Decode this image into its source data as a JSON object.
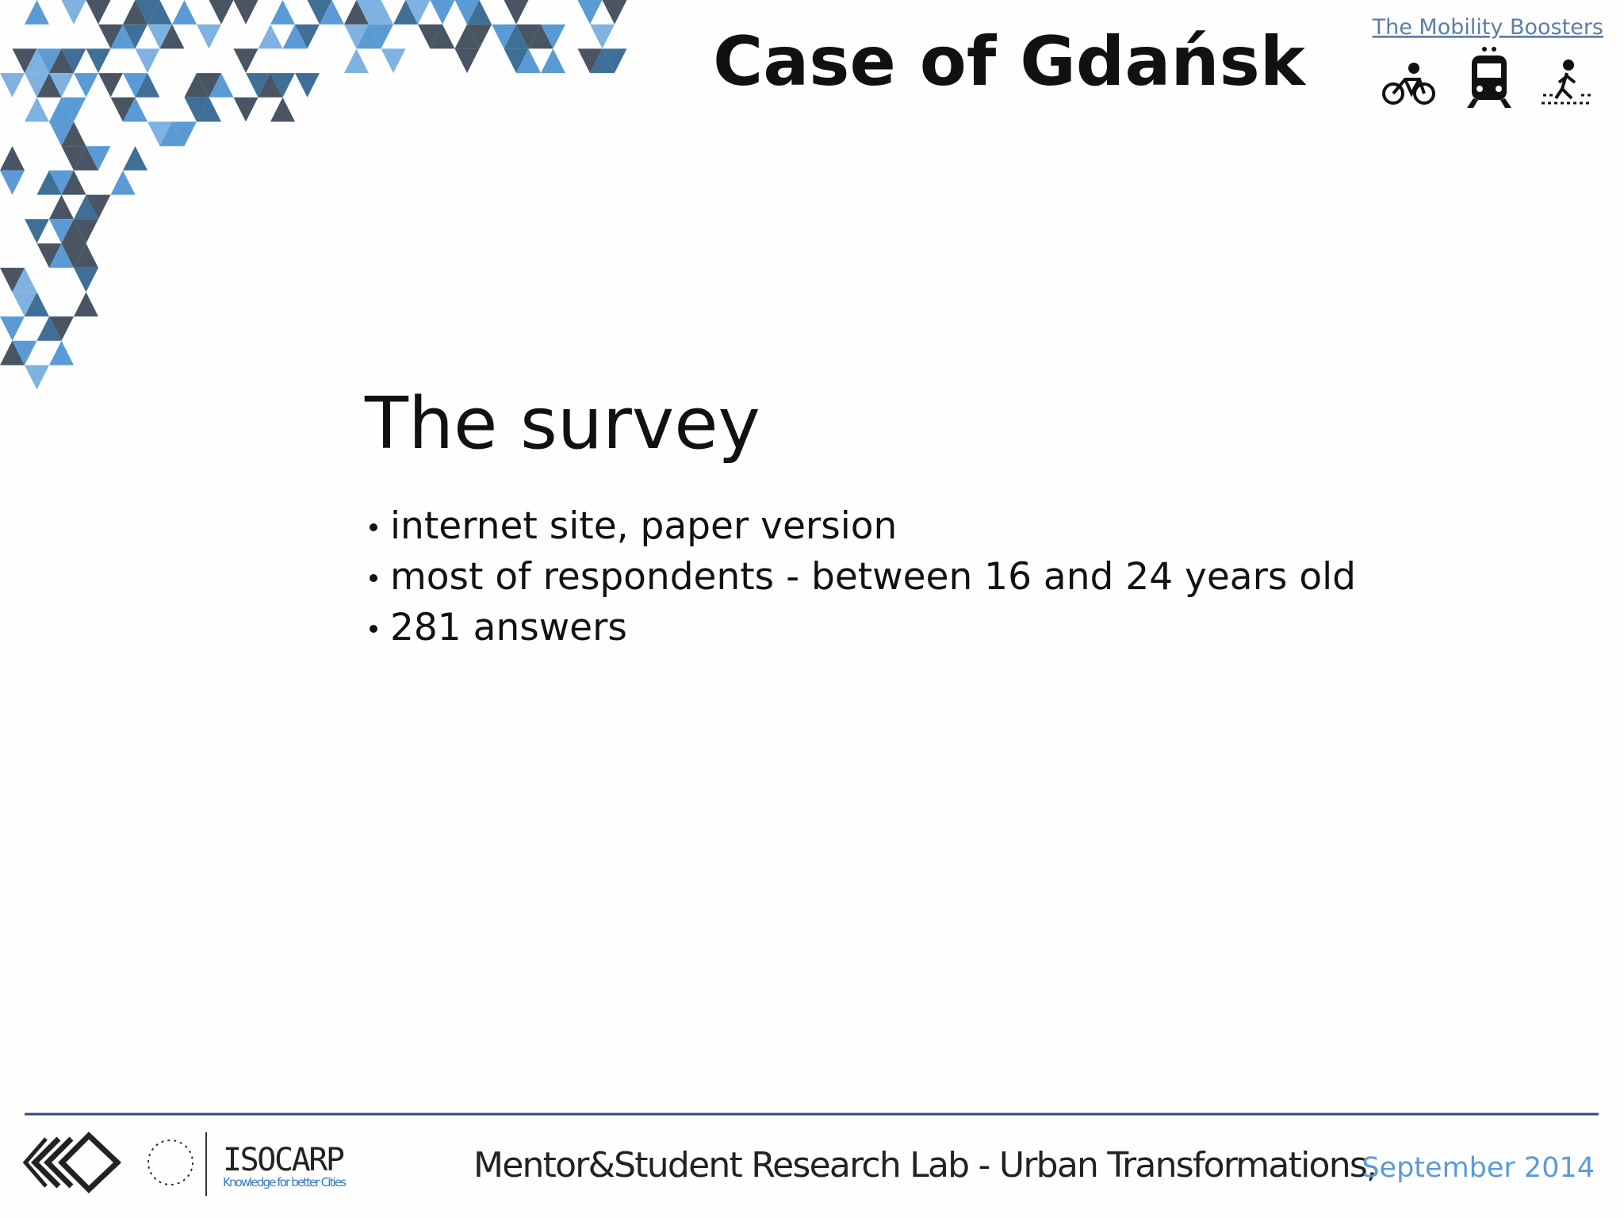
{
  "header": {
    "title": "Case of Gdańsk",
    "link": "The Mobility Boosters"
  },
  "content": {
    "heading": "The survey",
    "bullets": [
      "internet site, paper version",
      "most of respondents - between 16 and 24 years old",
      "281 answers"
    ]
  },
  "footer": {
    "text": "Mentor&Student Research Lab - Urban Transformations,",
    "date": "September 2014",
    "logo_name": "ISOCARP",
    "logo_tagline": "Knowledge for better Cities"
  }
}
